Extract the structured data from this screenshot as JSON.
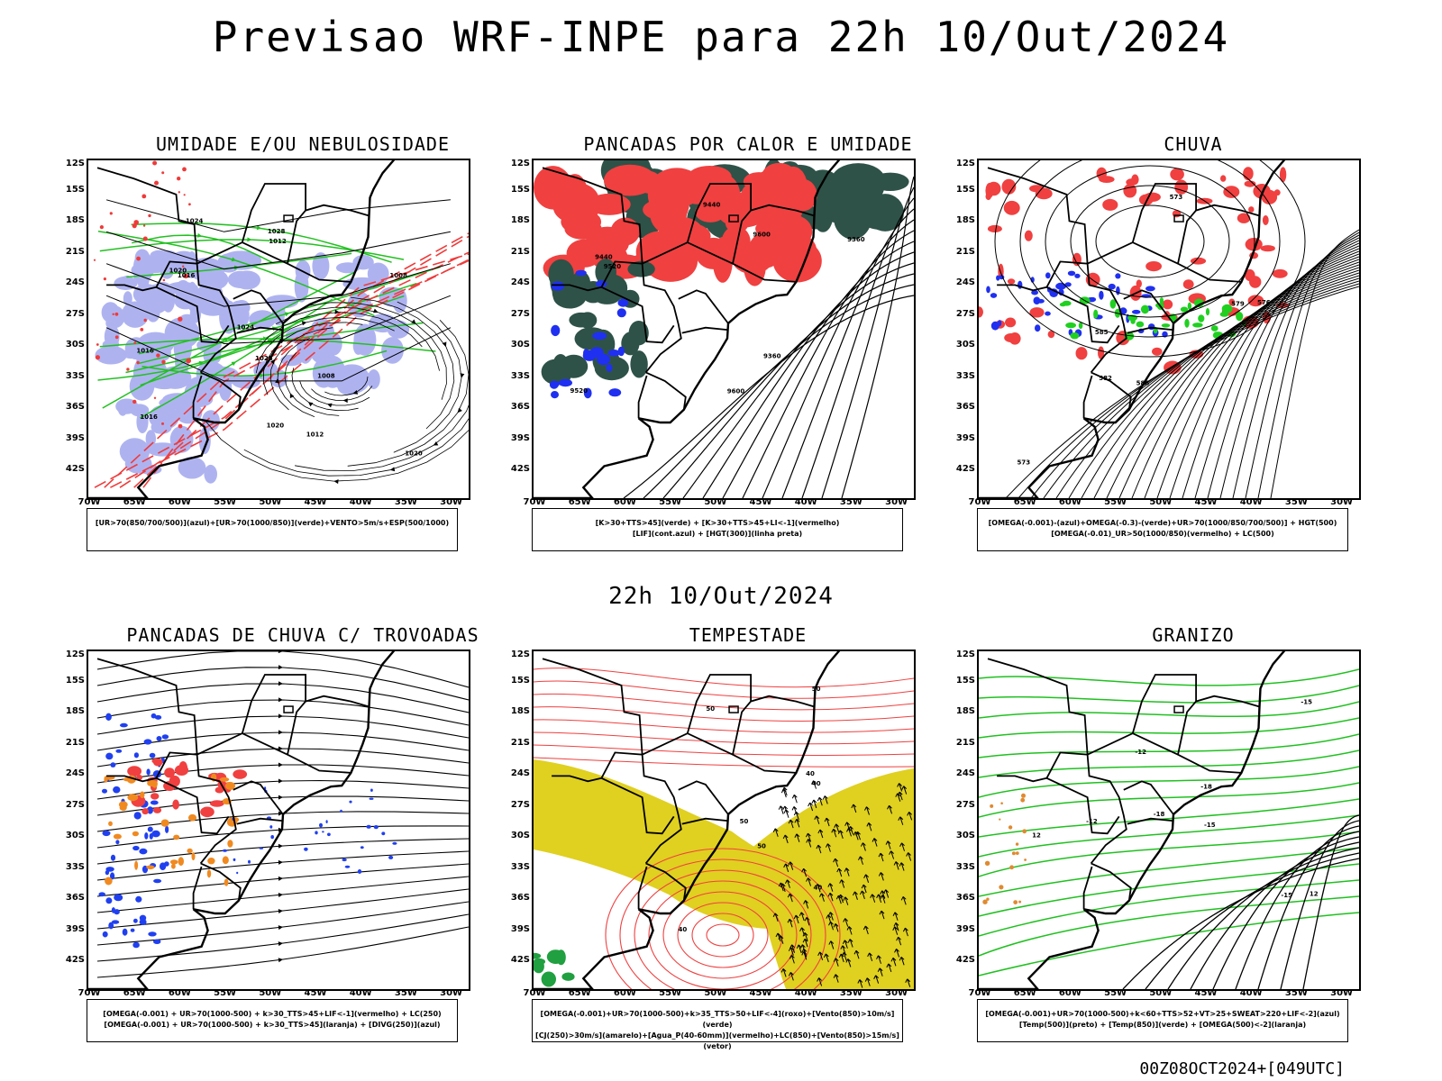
{
  "page": {
    "main_title": "Previsao WRF-INPE  para 22h 10/Out/2024",
    "mid_title": "22h 10/Out/2024",
    "footer_stamp": "00Z08OCT2024+[049UTC]"
  },
  "axes": {
    "lat_labels": [
      "12S",
      "15S",
      "18S",
      "21S",
      "24S",
      "27S",
      "30S",
      "33S",
      "36S",
      "39S",
      "42S"
    ],
    "lon_labels": [
      "70W",
      "65W",
      "60W",
      "55W",
      "50W",
      "45W",
      "40W",
      "35W",
      "30W"
    ]
  },
  "panels": [
    {
      "title": "UMIDADE E/OU NEBULOSIDADE",
      "legend": [
        "[UR>70(850/700/500)](azul)+[UR>70(1000/850)](verde)+VENTO>5m/s+ESP(500/1000)"
      ],
      "contour_labels": [
        "1008",
        "1008",
        "1012",
        "1016",
        "1016",
        "1020",
        "1020",
        "1020",
        "1024",
        "1024",
        "1028",
        "1028",
        "1012",
        "1016"
      ],
      "colors": {
        "blue": "#aeb3f0",
        "green": "#22c020",
        "red": "#f03a3a"
      }
    },
    {
      "title": "PANCADAS POR CALOR E UMIDADE",
      "legend": [
        "[K>30+TTS>45](verde) + [K>30+TTS>45+LI<-1](vermelho)",
        "[LIF](cont.azul) + [HGT(300)](linha preta)"
      ],
      "contour_labels": [
        "9600",
        "9520",
        "9440",
        "9360",
        "9600",
        "9520",
        "9440",
        "9360"
      ],
      "colors": {
        "red": "#f04040",
        "green": "#2e5248",
        "blue": "#2030f0"
      }
    },
    {
      "title": "CHUVA",
      "legend": [
        "[OMEGA(-0.001)-(azul)+OMEGA(-0.3)-(verde)+UR>70(1000/850/700/500)] + HGT(500)",
        "[OMEGA(-0.01)_UR>50(1000/850)(vermelho) + LC(500)"
      ],
      "contour_labels": [
        "588",
        "585",
        "582",
        "579",
        "576",
        "573",
        "573"
      ],
      "colors": {
        "red": "#f04040",
        "blue": "#2030f0",
        "green": "#20d020"
      }
    },
    {
      "title": "PANCADAS DE CHUVA C/ TROVOADAS",
      "legend": [
        "[OMEGA(-0.001) + UR>70(1000-500) + k>30_TTS>45+LIF<-1](vermelho) + LC(250)",
        "[OMEGA(-0.001) + UR>70(1000-500) + k>30_TTS>45](laranja) + [DIVG(250)](azul)"
      ],
      "contour_labels": [],
      "colors": {
        "red": "#f04040",
        "orange": "#f08a20",
        "blue": "#2040f0"
      }
    },
    {
      "title": "TEMPESTADE",
      "legend": [
        "[OMEGA(-0.001)+UR>70(1000-500)+k>35_TTS>50+LIF<-4](roxo)+[Vento(850)>10m/s](verde)",
        "[CJ(250)>30m/s](amarelo)+[Agua_P(40-60mm)](vermelho)+LC(850)+[Vento(850)>15m/s](vetor)"
      ],
      "contour_labels": [
        "50",
        "50",
        "40",
        "40",
        "50",
        "50",
        "40",
        "40"
      ],
      "colors": {
        "yellow": "#e0d020",
        "red": "#f04040",
        "green": "#20a040"
      }
    },
    {
      "title": "GRANIZO",
      "legend": [
        "[OMEGA(-0.001)+UR>70(1000-500)+k<60+TTS>52+VT>25+SWEAT>220+LIF<-2](azul)",
        "[Temp(500)](preto) + [Temp(850)](verde) + [OMEGA(500)<-2](laranja)"
      ],
      "contour_labels": [
        "-12",
        "-12",
        "-15",
        "-15",
        "-15",
        "-18",
        "-18",
        "12",
        "12"
      ],
      "colors": {
        "green": "#20c020",
        "orange": "#e08a30"
      }
    }
  ]
}
